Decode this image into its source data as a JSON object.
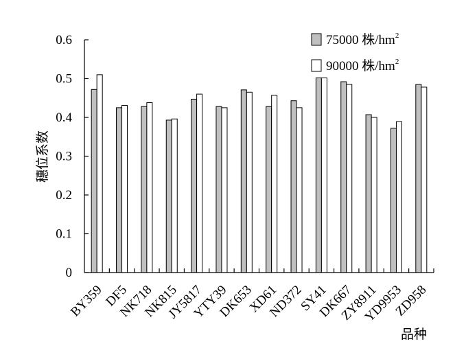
{
  "chart_data": {
    "type": "bar",
    "title": "",
    "xlabel": "品种",
    "ylabel": "穗位系数",
    "ylim": [
      0,
      0.6
    ],
    "yticks": [
      "0",
      "0.1",
      "0.2",
      "0.3",
      "0.4",
      "0.5",
      "0.6"
    ],
    "grid": false,
    "legend_position": "top-right",
    "categories": [
      "BY359",
      "DF5",
      "NK718",
      "NK815",
      "JY5817",
      "YTY39",
      "DK653",
      "XD61",
      "ND372",
      "SY41",
      "DK667",
      "ZY8911",
      "YD9953",
      "ZD958"
    ],
    "series": [
      {
        "name": "75000 株/hm",
        "name_superscript": "2",
        "color": "#c0c0c0",
        "values": [
          0.472,
          0.425,
          0.428,
          0.393,
          0.447,
          0.428,
          0.471,
          0.428,
          0.443,
          0.502,
          0.492,
          0.407,
          0.372,
          0.485
        ]
      },
      {
        "name": "90000 株/hm",
        "name_superscript": "2",
        "color": "#ffffff",
        "values": [
          0.51,
          0.431,
          0.438,
          0.396,
          0.46,
          0.425,
          0.465,
          0.457,
          0.425,
          0.502,
          0.485,
          0.4,
          0.389,
          0.478
        ]
      }
    ]
  }
}
